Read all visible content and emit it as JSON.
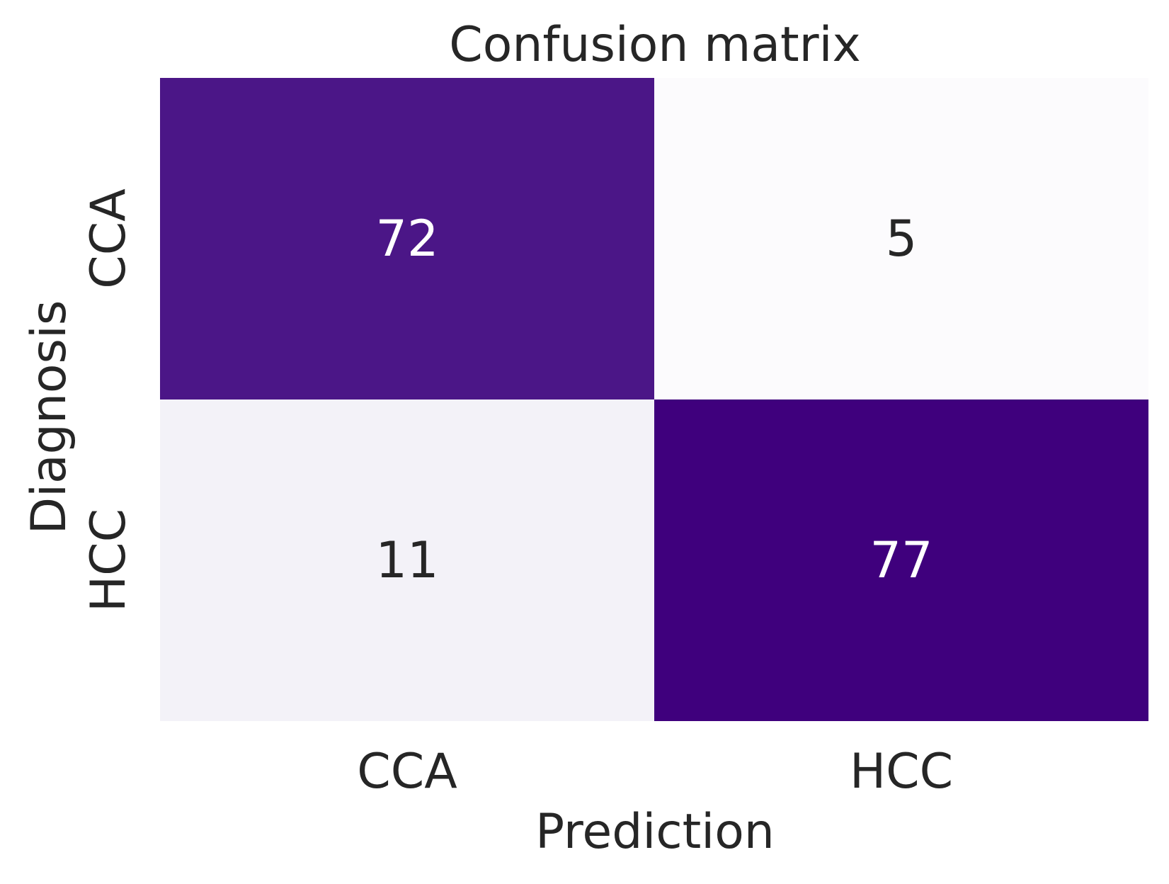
{
  "chart_data": {
    "type": "heatmap",
    "title": "Confusion matrix",
    "xlabel": "Prediction",
    "ylabel": "Diagnosis",
    "x_categories": [
      "CCA",
      "HCC"
    ],
    "y_categories": [
      "CCA",
      "HCC"
    ],
    "matrix": [
      [
        72,
        5
      ],
      [
        11,
        77
      ]
    ],
    "colormap": "Purples",
    "colorbar": false,
    "grid": false,
    "colors": {
      "low": "#fcfbfd",
      "high": "#3f007d",
      "text_dark": "#262626",
      "text_light": "#ffffff"
    }
  }
}
